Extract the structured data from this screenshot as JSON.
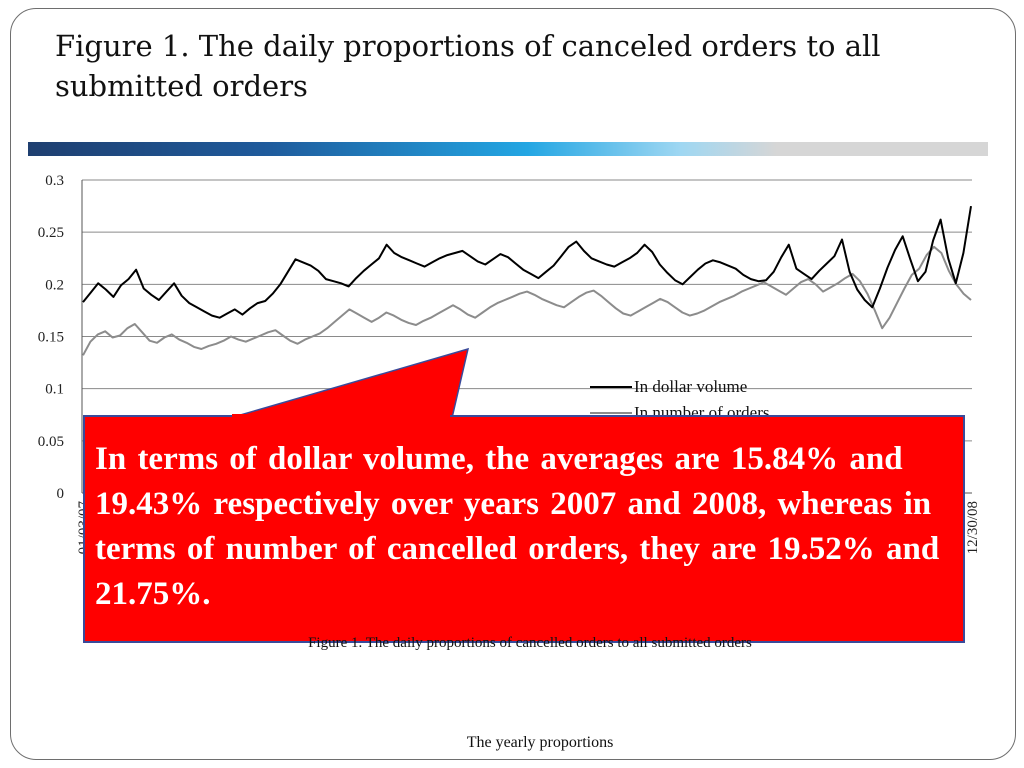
{
  "slide": {
    "title": "Figure 1. The daily proportions of canceled orders to all submitted orders",
    "footer": "The yearly proportions"
  },
  "colors": {
    "accent_gradient": [
      "#1f3f70",
      "#23a6e3",
      "#d6d6d6"
    ],
    "callout_fill": "#ff0000",
    "callout_border": "#3a4a9a",
    "callout_text": "#ffffff",
    "series_dollar": "#000000",
    "series_count": "#8c8c8c"
  },
  "chart_data": {
    "type": "line",
    "title": "",
    "xlabel": "",
    "ylabel": "",
    "ylim": [
      0,
      0.3
    ],
    "yticks": [
      "0",
      "0.05",
      "0.1",
      "0.15",
      "0.2",
      "0.25",
      "0.3"
    ],
    "xtick_labels": [
      "01/03/07",
      "12/30/08"
    ],
    "grid": true,
    "legend_position": "center-right",
    "series": [
      {
        "name": "In dollar volume",
        "color": "#000000",
        "values": [
          0.183,
          0.192,
          0.201,
          0.195,
          0.188,
          0.199,
          0.205,
          0.214,
          0.196,
          0.19,
          0.185,
          0.193,
          0.201,
          0.189,
          0.182,
          0.178,
          0.174,
          0.17,
          0.168,
          0.172,
          0.176,
          0.171,
          0.177,
          0.182,
          0.184,
          0.191,
          0.2,
          0.212,
          0.224,
          0.221,
          0.218,
          0.213,
          0.205,
          0.203,
          0.201,
          0.198,
          0.206,
          0.213,
          0.219,
          0.225,
          0.238,
          0.23,
          0.226,
          0.223,
          0.22,
          0.217,
          0.221,
          0.225,
          0.228,
          0.23,
          0.232,
          0.227,
          0.222,
          0.219,
          0.224,
          0.229,
          0.226,
          0.22,
          0.214,
          0.21,
          0.206,
          0.212,
          0.218,
          0.227,
          0.236,
          0.241,
          0.232,
          0.225,
          0.222,
          0.219,
          0.217,
          0.221,
          0.225,
          0.23,
          0.238,
          0.231,
          0.219,
          0.211,
          0.204,
          0.2,
          0.207,
          0.214,
          0.22,
          0.223,
          0.221,
          0.218,
          0.215,
          0.209,
          0.205,
          0.203,
          0.204,
          0.212,
          0.226,
          0.238,
          0.215,
          0.21,
          0.205,
          0.213,
          0.22,
          0.227,
          0.243,
          0.212,
          0.195,
          0.185,
          0.178,
          0.196,
          0.216,
          0.233,
          0.246,
          0.224,
          0.203,
          0.212,
          0.242,
          0.262,
          0.225,
          0.201,
          0.23,
          0.275
        ]
      },
      {
        "name": "In number of orders",
        "color": "#8c8c8c",
        "values": [
          0.132,
          0.145,
          0.152,
          0.155,
          0.149,
          0.151,
          0.158,
          0.162,
          0.154,
          0.146,
          0.144,
          0.149,
          0.152,
          0.147,
          0.144,
          0.14,
          0.138,
          0.141,
          0.143,
          0.146,
          0.15,
          0.147,
          0.145,
          0.148,
          0.151,
          0.154,
          0.156,
          0.151,
          0.146,
          0.143,
          0.147,
          0.15,
          0.153,
          0.158,
          0.164,
          0.17,
          0.176,
          0.172,
          0.168,
          0.164,
          0.168,
          0.173,
          0.17,
          0.166,
          0.163,
          0.161,
          0.165,
          0.168,
          0.172,
          0.176,
          0.18,
          0.176,
          0.171,
          0.168,
          0.173,
          0.178,
          0.182,
          0.185,
          0.188,
          0.191,
          0.193,
          0.19,
          0.186,
          0.183,
          0.18,
          0.178,
          0.183,
          0.188,
          0.192,
          0.194,
          0.189,
          0.183,
          0.177,
          0.172,
          0.17,
          0.174,
          0.178,
          0.182,
          0.186,
          0.183,
          0.178,
          0.173,
          0.17,
          0.172,
          0.175,
          0.179,
          0.183,
          0.186,
          0.189,
          0.193,
          0.196,
          0.199,
          0.202,
          0.198,
          0.194,
          0.19,
          0.196,
          0.202,
          0.205,
          0.2,
          0.193,
          0.197,
          0.201,
          0.206,
          0.21,
          0.203,
          0.191,
          0.175,
          0.158,
          0.168,
          0.182,
          0.196,
          0.209,
          0.215,
          0.228,
          0.236,
          0.23,
          0.213,
          0.2,
          0.191,
          0.185
        ]
      }
    ],
    "caption": "Figure 1. The daily proportions of cancelled orders to all submitted orders"
  },
  "callout": {
    "text": "In terms of dollar volume, the averages are 15.84% and 19.43% respectively over years 2007 and 2008, whereas in terms of number of cancelled orders, they are 19.52% and 21.75%."
  }
}
